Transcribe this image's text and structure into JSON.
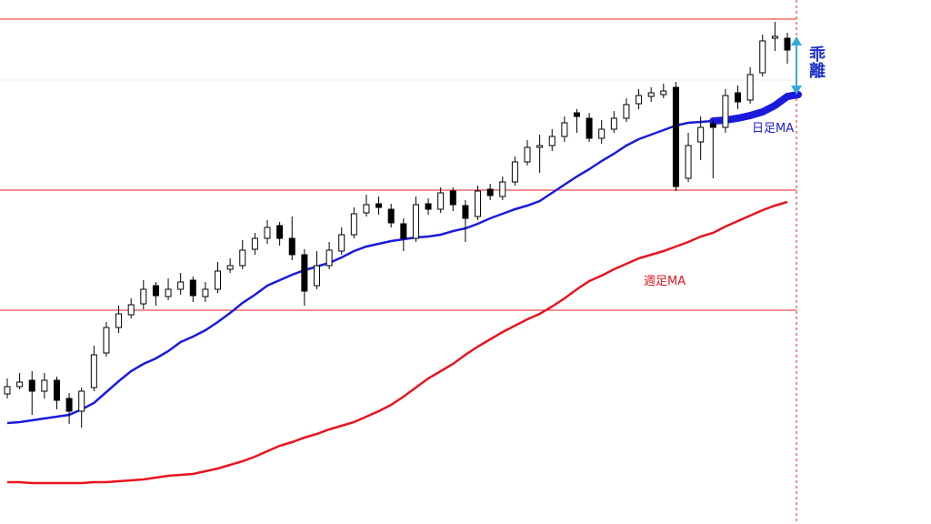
{
  "chart_data": {
    "type": "candlestick",
    "ylim": [
      0,
      576
    ],
    "up_color": "#ffffff",
    "down_color": "#000000",
    "outline_color": "#000000",
    "open": [
      143,
      151,
      158,
      146,
      158,
      138,
      124,
      150,
      188,
      216,
      230,
      242,
      262,
      250,
      258,
      268,
      250,
      258,
      280,
      284,
      302,
      314,
      328,
      314,
      296,
      262,
      284,
      300,
      318,
      342,
      352,
      346,
      330,
      314,
      352,
      346,
      366,
      350,
      338,
      368,
      360,
      376,
      398,
      414,
      416,
      426,
      452,
      446,
      424,
      434,
      446,
      462,
      470,
      472,
      480,
      380,
      420,
      440,
      436,
      474,
      466,
      496,
      534,
      534
    ],
    "high": [
      160,
      166,
      168,
      166,
      162,
      144,
      150,
      196,
      222,
      240,
      248,
      268,
      266,
      270,
      276,
      272,
      266,
      288,
      292,
      312,
      320,
      334,
      332,
      338,
      302,
      300,
      310,
      326,
      348,
      362,
      360,
      352,
      336,
      360,
      358,
      370,
      370,
      356,
      372,
      374,
      382,
      404,
      422,
      428,
      434,
      448,
      456,
      452,
      444,
      454,
      468,
      478,
      480,
      484,
      486,
      430,
      448,
      444,
      478,
      482,
      502,
      538,
      552,
      540
    ],
    "low": [
      138,
      148,
      120,
      138,
      126,
      110,
      106,
      146,
      184,
      210,
      226,
      236,
      240,
      246,
      252,
      244,
      244,
      254,
      276,
      280,
      296,
      308,
      306,
      290,
      240,
      258,
      280,
      296,
      314,
      338,
      340,
      326,
      300,
      310,
      340,
      342,
      344,
      310,
      334,
      356,
      356,
      372,
      394,
      386,
      410,
      420,
      430,
      420,
      418,
      430,
      442,
      456,
      464,
      468,
      366,
      376,
      400,
      380,
      430,
      456,
      462,
      492,
      520,
      506
    ],
    "close": [
      151,
      156,
      146,
      158,
      136,
      124,
      146,
      186,
      216,
      231,
      241,
      258,
      251,
      258,
      266,
      251,
      258,
      278,
      284,
      301,
      314,
      326,
      314,
      296,
      256,
      284,
      301,
      318,
      341,
      351,
      348,
      331,
      314,
      351,
      346,
      364,
      351,
      336,
      366,
      361,
      376,
      398,
      414,
      416,
      426,
      441,
      448,
      424,
      434,
      446,
      461,
      471,
      474,
      476,
      371,
      416,
      436,
      436,
      471,
      464,
      494,
      531,
      536,
      521
    ],
    "lines": [
      {
        "label": "日足MA",
        "color": "#1a1adc",
        "values": [
          111,
          112,
          114,
          116,
          118,
          120,
          126,
          133,
          145,
          157,
          168,
          176,
          182,
          190,
          200,
          206,
          213,
          222,
          232,
          243,
          252,
          262,
          268,
          274,
          279,
          283,
          287,
          293,
          300,
          305,
          308,
          311,
          313,
          315,
          316,
          318,
          322,
          325,
          330,
          336,
          341,
          346,
          350,
          355,
          364,
          373,
          382,
          390,
          399,
          407,
          416,
          423,
          428,
          433,
          438,
          441,
          442,
          443,
          444,
          446,
          449,
          453,
          460,
          470
        ]
      },
      {
        "label": "週足MA",
        "color": "#e8141e",
        "values": [
          46,
          46,
          45,
          45,
          45,
          45,
          45,
          46,
          46,
          47,
          48,
          49,
          51,
          53,
          54,
          55,
          58,
          61,
          65,
          69,
          74,
          80,
          86,
          90,
          95,
          99,
          104,
          108,
          112,
          118,
          124,
          131,
          140,
          150,
          160,
          168,
          176,
          186,
          195,
          203,
          211,
          218,
          225,
          231,
          239,
          248,
          258,
          267,
          273,
          280,
          286,
          292,
          296,
          300,
          305,
          310,
          316,
          320,
          327,
          333,
          339,
          345,
          350,
          354
        ]
      }
    ],
    "hlines": {
      "color": "#e02020",
      "values": [
        555,
        367,
        235
      ]
    },
    "annotation": "乖離"
  }
}
